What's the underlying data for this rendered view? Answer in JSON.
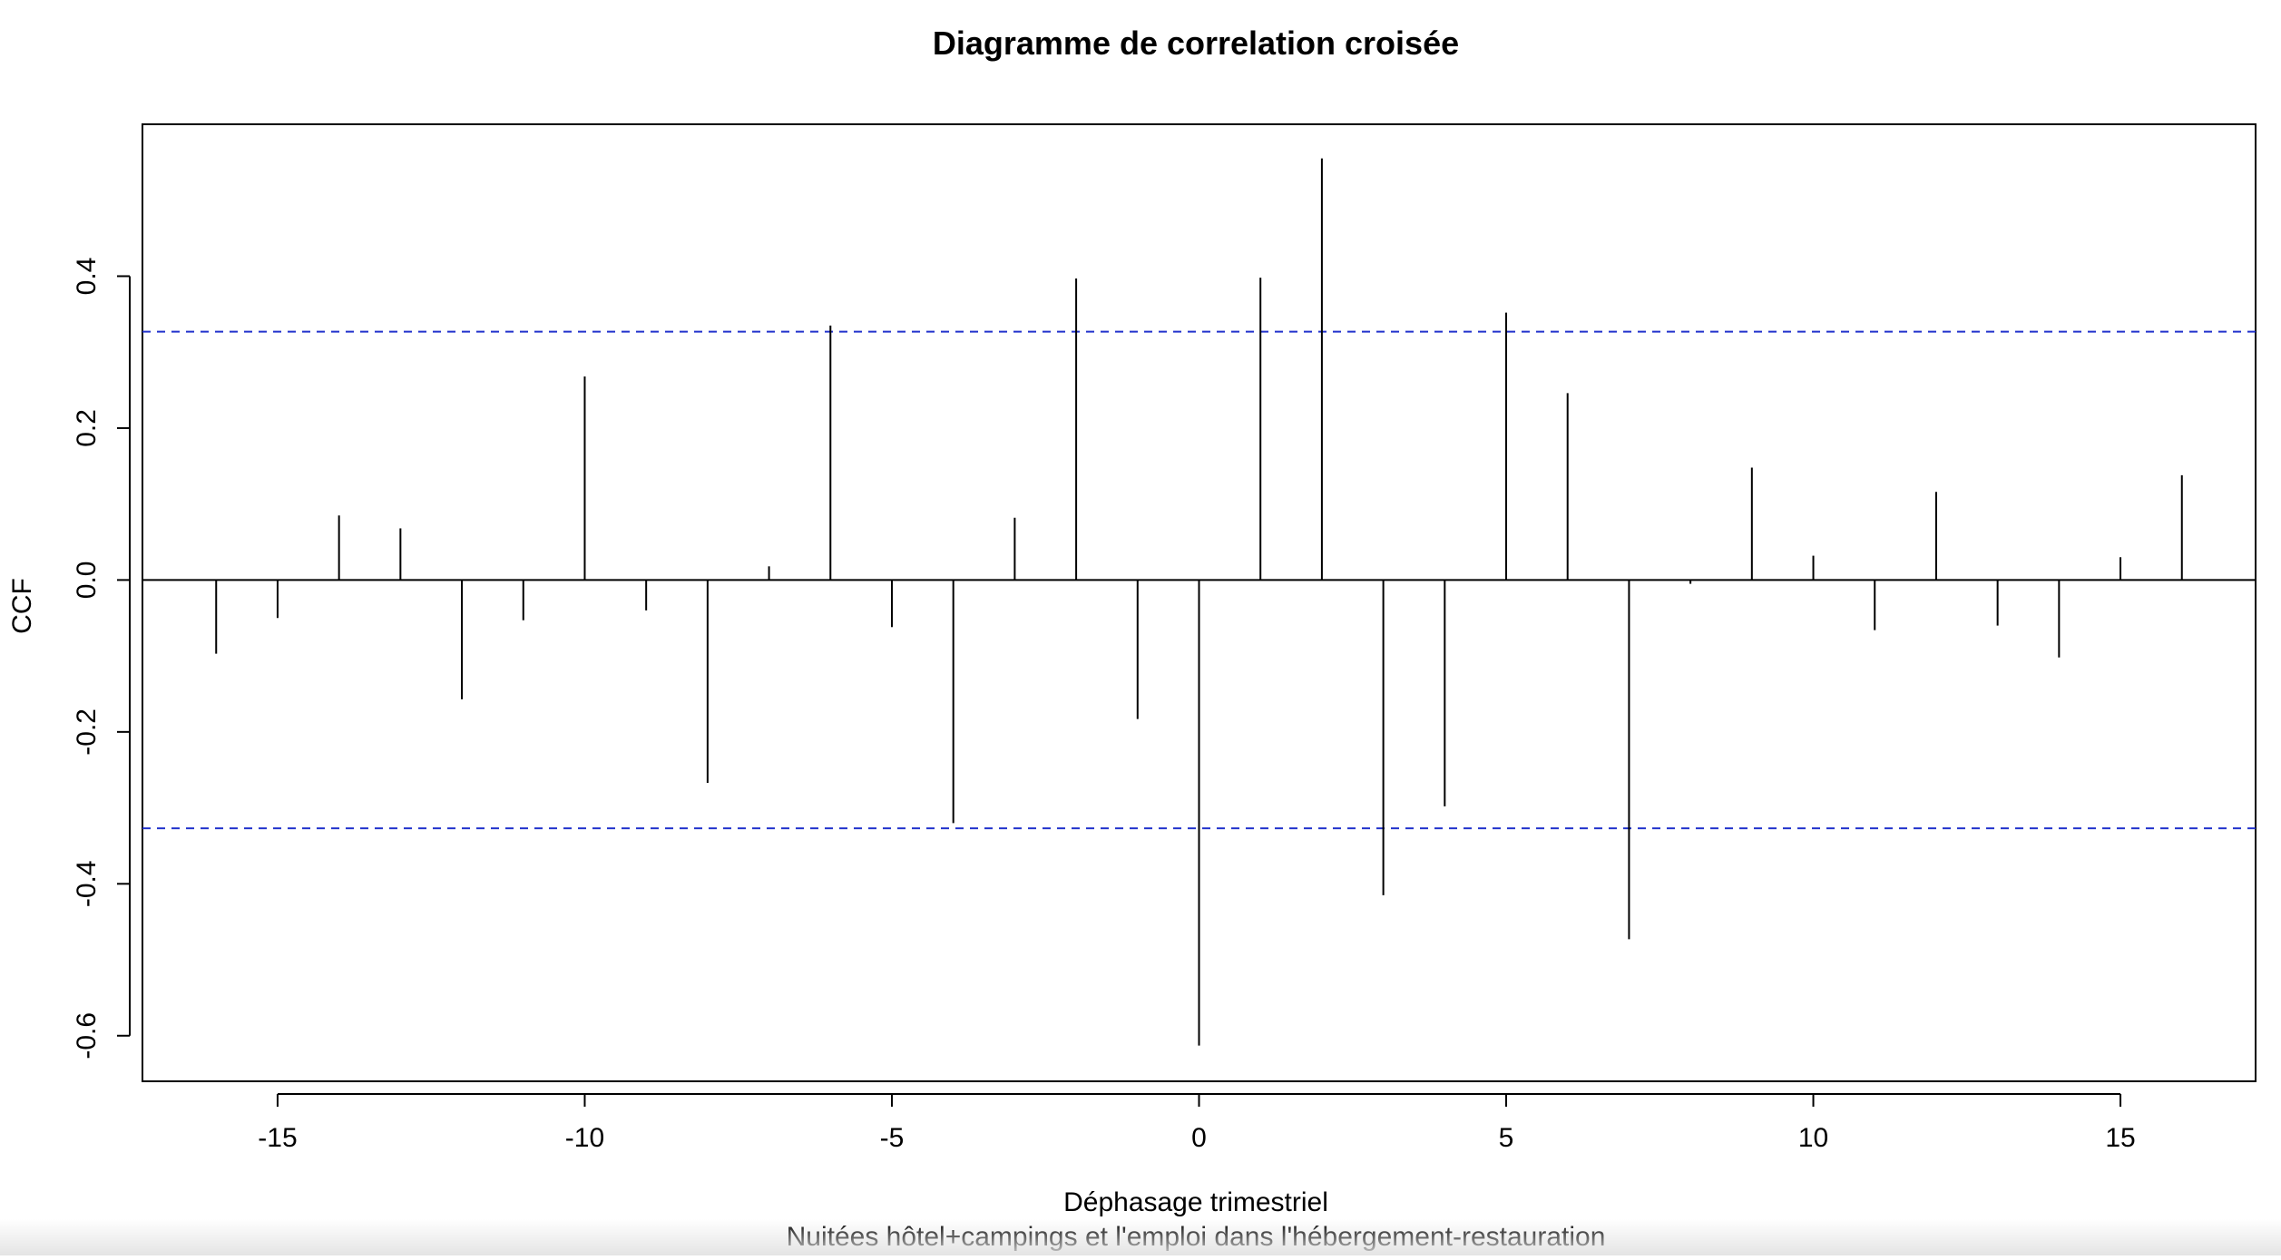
{
  "chart_data": {
    "type": "bar",
    "title": "Diagramme de correlation croisée",
    "xlabel": "Déphasage trimestriel",
    "subtitle": "Nuitées hôtel+campings et l'emploi dans l'hébergement-restauration",
    "ylabel": "CCF",
    "xlim": [
      -17.2,
      17.2
    ],
    "ylim": [
      -0.66,
      0.6
    ],
    "x_ticks": [
      -15,
      -10,
      -5,
      0,
      5,
      10,
      15
    ],
    "x_tick_labels": [
      "-15",
      "-10",
      "-5",
      "0",
      "5",
      "10",
      "15"
    ],
    "y_ticks": [
      -0.6,
      -0.4,
      -0.2,
      0.0,
      0.2,
      0.4
    ],
    "y_tick_labels": [
      "-0.6",
      "-0.4",
      "-0.2",
      "0.0",
      "0.2",
      "0.4"
    ],
    "confidence_bounds": [
      0.327,
      -0.327
    ],
    "zero_line": 0,
    "grid": false,
    "colors": {
      "bars": "#000000",
      "confidence_lines": "#2233cc",
      "zero_line": "#000000",
      "frame": "#000000"
    },
    "x": [
      -16,
      -15,
      -14,
      -13,
      -12,
      -11,
      -10,
      -9,
      -8,
      -7,
      -6,
      -5,
      -4,
      -3,
      -2,
      -1,
      0,
      1,
      2,
      3,
      4,
      5,
      6,
      7,
      8,
      9,
      10,
      11,
      12,
      13,
      14,
      15,
      16
    ],
    "values": [
      -0.097,
      -0.05,
      0.085,
      0.068,
      -0.157,
      -0.053,
      0.268,
      -0.04,
      -0.267,
      0.018,
      0.335,
      -0.062,
      -0.32,
      0.082,
      0.397,
      -0.183,
      -0.613,
      0.398,
      0.555,
      -0.415,
      -0.298,
      0.352,
      0.246,
      -0.473,
      -0.005,
      0.148,
      0.032,
      -0.066,
      0.116,
      -0.06,
      -0.102,
      0.03,
      0.138
    ]
  }
}
